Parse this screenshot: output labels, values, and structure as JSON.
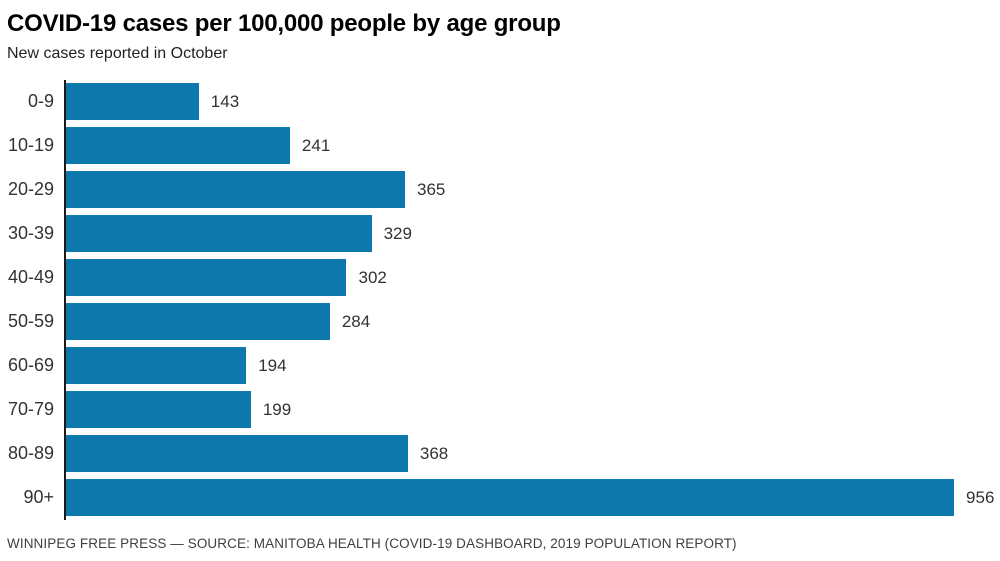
{
  "chart_data": {
    "type": "bar",
    "orientation": "horizontal",
    "title": "COVID-19 cases per 100,000 people by age group",
    "subtitle": "New cases reported in October",
    "source": "WINNIPEG FREE PRESS — SOURCE: MANITOBA HEALTH (COVID-19 DASHBOARD, 2019 POPULATION REPORT)",
    "categories": [
      "0-9",
      "10-19",
      "20-29",
      "30-39",
      "40-49",
      "50-59",
      "60-69",
      "70-79",
      "80-89",
      "90+"
    ],
    "values": [
      143,
      241,
      365,
      329,
      302,
      284,
      194,
      199,
      368,
      956
    ],
    "xlabel": "",
    "ylabel": "",
    "xlim": [
      0,
      956
    ],
    "data_labels": true,
    "grid": false,
    "legend": false,
    "colors": {
      "bar": "#0d79ad",
      "axis": "#1a1a1a",
      "title": "#000000",
      "text": "#333333",
      "source": "#3f3f3f"
    }
  }
}
